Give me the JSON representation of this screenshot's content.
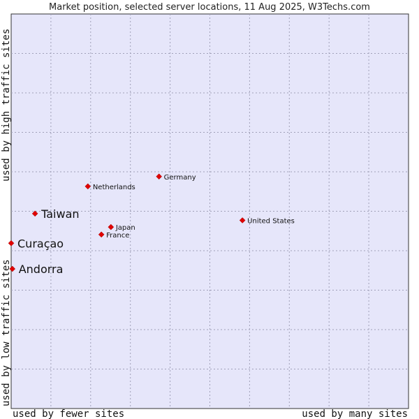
{
  "chart_data": {
    "type": "scatter",
    "title": "Market position, selected server locations, 11 Aug 2025, W3Techs.com",
    "xlabel_left": "used by fewer sites",
    "xlabel_right": "used by many sites",
    "ylabel_bottom": "used by low traffic sites",
    "ylabel_top": "used by high traffic sites",
    "xlim": [
      0,
      1
    ],
    "ylim": [
      0,
      1
    ],
    "grid": true,
    "point_color": "#e00000",
    "background_color": "#e6e6fa",
    "points": [
      {
        "label": "Germany",
        "x": 0.372,
        "y": 0.588,
        "emphasis": false
      },
      {
        "label": "Netherlands",
        "x": 0.193,
        "y": 0.563,
        "emphasis": false
      },
      {
        "label": "Taiwan",
        "x": 0.06,
        "y": 0.494,
        "emphasis": true
      },
      {
        "label": "United States",
        "x": 0.582,
        "y": 0.477,
        "emphasis": false
      },
      {
        "label": "Japan",
        "x": 0.251,
        "y": 0.46,
        "emphasis": false
      },
      {
        "label": "France",
        "x": 0.227,
        "y": 0.441,
        "emphasis": false
      },
      {
        "label": "Curaçao",
        "x": 0.0,
        "y": 0.419,
        "emphasis": true
      },
      {
        "label": "Andorra",
        "x": 0.003,
        "y": 0.354,
        "emphasis": true
      }
    ]
  }
}
